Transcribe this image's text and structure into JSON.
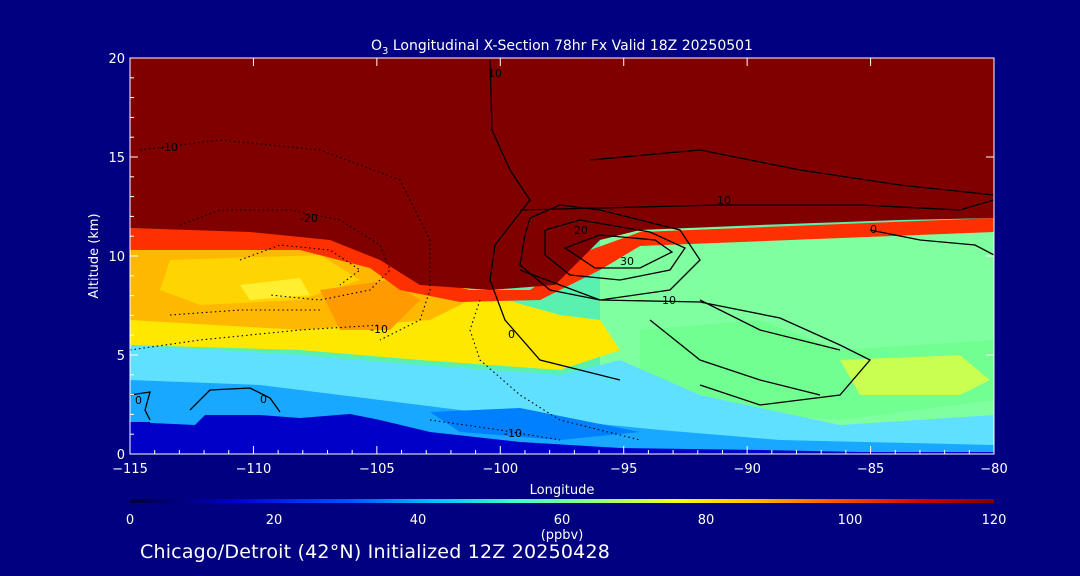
{
  "chart_data": {
    "type": "heatmap",
    "title_prefix": "O",
    "title_subscript": "3",
    "title_rest": " Longitudinal X-Section 78hr  Fx Valid 18Z 20250501",
    "xlabel": "Longitude",
    "ylabel": "Altitude (km)",
    "xlim": [
      -115,
      -80
    ],
    "ylim": [
      0,
      20
    ],
    "x_ticks": [
      -115,
      -110,
      -105,
      -100,
      -95,
      -90,
      -85,
      -80
    ],
    "x_tick_labels": [
      "−115",
      "−110",
      "−105",
      "−100",
      "−95",
      "−90",
      "−85",
      "−80"
    ],
    "y_ticks": [
      0,
      5,
      10,
      15,
      20
    ],
    "y_tick_labels": [
      "0",
      "5",
      "10",
      "15",
      "20"
    ],
    "colorbar": {
      "label": "(ppbv)",
      "range": [
        0,
        120
      ],
      "ticks": [
        0,
        20,
        40,
        60,
        80,
        100,
        120
      ],
      "tick_labels": [
        "0",
        "20",
        "40",
        "60",
        "80",
        "100",
        "120"
      ]
    },
    "field": {
      "description_of_bands": "ozone mixing ratio, filled contours",
      "bands": [
        {
          "value": 120,
          "region": "stratosphere above ~11-12 km"
        },
        {
          "value": 95,
          "region": "fold near -104 to -97 lon, 8-11 km"
        },
        {
          "value": 80,
          "region": "-115 to -103 lon, 5-11 km"
        },
        {
          "value": 60,
          "region": "-95 to -80 lon, 3-11 km"
        },
        {
          "value": 40,
          "region": "boundary layer 1-3 km"
        },
        {
          "value": 15,
          "region": "terrain / surface"
        }
      ]
    },
    "contour_labels": [
      "-10",
      "-20",
      "-10",
      "0",
      "0",
      "0",
      "30",
      "20",
      "10",
      "10",
      "10",
      "0",
      "-10"
    ],
    "contour_colors": {
      "positive": "#000000",
      "negative": "#000000"
    }
  },
  "footer": "Chicago/Detroit (42°N) Initialized 12Z 20250428"
}
